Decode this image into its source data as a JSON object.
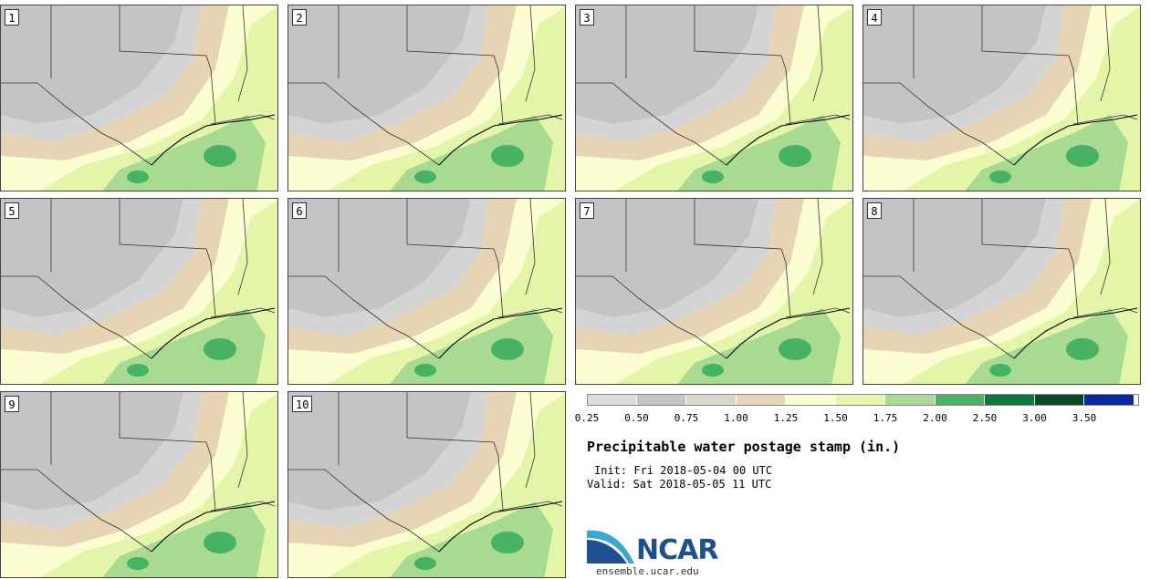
{
  "panels": [
    {
      "label": "1"
    },
    {
      "label": "2"
    },
    {
      "label": "3"
    },
    {
      "label": "4"
    },
    {
      "label": "5"
    },
    {
      "label": "6"
    },
    {
      "label": "7"
    },
    {
      "label": "8"
    },
    {
      "label": "9"
    },
    {
      "label": "10"
    }
  ],
  "colorbar": {
    "colors": [
      "#dcdcdc",
      "#c4c4c4",
      "#d8d8c8",
      "#e6d4b4",
      "#fdfdd2",
      "#e2f5a8",
      "#a8da92",
      "#48b264",
      "#0a7a3a",
      "#0a4a24",
      "#0a28aa"
    ],
    "ticks": [
      "0.25",
      "0.50",
      "0.75",
      "1.00",
      "1.25",
      "1.50",
      "1.75",
      "2.00",
      "2.50",
      "3.00",
      "3.50"
    ]
  },
  "title": "Precipitable water postage stamp (in.)",
  "init": "Init: Fri 2018-05-04 00 UTC",
  "valid": "Valid: Sat 2018-05-05 11 UTC",
  "logo": {
    "text": "NCAR",
    "site": "ensemble.ucar.edu"
  }
}
